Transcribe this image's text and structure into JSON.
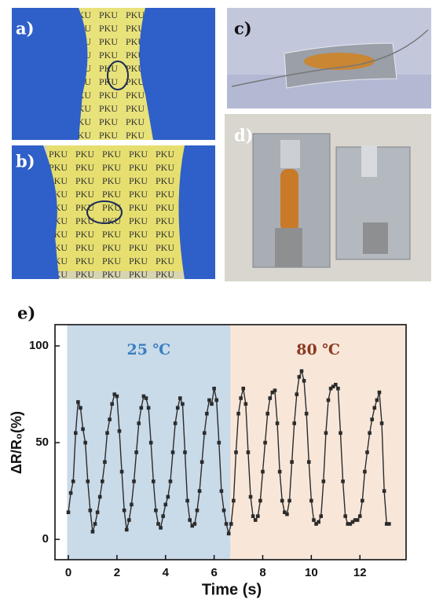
{
  "panels": [
    "a)",
    "b)",
    "c)",
    "d)",
    "e)"
  ],
  "photo_text": "PKU",
  "chart_data": {
    "type": "line",
    "x_label": "Time (s)",
    "y_label": "ΔR/R₀(%)",
    "xlim": [
      -0.55,
      13.9
    ],
    "ylim": [
      -10.5,
      111
    ],
    "xticks": [
      0,
      2,
      4,
      6,
      8,
      10,
      12
    ],
    "yticks": [
      0,
      50,
      100
    ],
    "regions": [
      {
        "xlim": [
          -0.05,
          6.67
        ],
        "color": "#c9dae9",
        "label": "25 ℃",
        "label_color": "#3a7fc0"
      },
      {
        "xlim": [
          6.67,
          13.9
        ],
        "color": "#f8e7d9",
        "label": "80 ℃",
        "label_color": "#8b3a22"
      }
    ],
    "series": [
      {
        "color": "#2b2b2b",
        "x": [
          0.0,
          0.1,
          0.2,
          0.3,
          0.4,
          0.5,
          0.6,
          0.7,
          0.8,
          0.9,
          1.0,
          1.1,
          1.2,
          1.3,
          1.4,
          1.5,
          1.6,
          1.7,
          1.8,
          1.9,
          2.0,
          2.1,
          2.2,
          2.3,
          2.4,
          2.5,
          2.6,
          2.7,
          2.8,
          2.9,
          3.0,
          3.1,
          3.2,
          3.3,
          3.4,
          3.5,
          3.6,
          3.7,
          3.8,
          3.9,
          4.0,
          4.1,
          4.2,
          4.3,
          4.4,
          4.5,
          4.6,
          4.7,
          4.8,
          4.9,
          5.0,
          5.1,
          5.2,
          5.3,
          5.4,
          5.5,
          5.6,
          5.7,
          5.8,
          5.9,
          6.0,
          6.1,
          6.2,
          6.3,
          6.4,
          6.5,
          6.6,
          6.7,
          6.8,
          6.9,
          7.0,
          7.1,
          7.2,
          7.3,
          7.4,
          7.5,
          7.6,
          7.7,
          7.8,
          7.9,
          8.0,
          8.1,
          8.2,
          8.3,
          8.4,
          8.5,
          8.6,
          8.7,
          8.8,
          8.9,
          9.0,
          9.1,
          9.2,
          9.3,
          9.4,
          9.5,
          9.6,
          9.7,
          9.8,
          9.9,
          10.0,
          10.1,
          10.2,
          10.3,
          10.4,
          10.5,
          10.6,
          10.7,
          10.8,
          10.9,
          11.0,
          11.1,
          11.2,
          11.3,
          11.4,
          11.5,
          11.6,
          11.7,
          11.8,
          11.9,
          12.0,
          12.1,
          12.2,
          12.3,
          12.4,
          12.5,
          12.6,
          12.7,
          12.8,
          12.9,
          13.0,
          13.1,
          13.2
        ],
        "values": [
          14,
          24,
          30,
          55,
          71,
          68,
          57,
          50,
          30,
          15,
          4,
          8,
          14,
          22,
          30,
          40,
          55,
          62,
          70,
          75,
          74,
          56,
          35,
          15,
          5,
          10,
          18,
          30,
          45,
          60,
          68,
          74,
          73,
          68,
          50,
          30,
          15,
          8,
          6,
          12,
          18,
          22,
          30,
          45,
          60,
          68,
          73,
          70,
          45,
          20,
          10,
          7,
          8,
          15,
          25,
          40,
          55,
          65,
          72,
          70,
          78,
          72,
          50,
          25,
          15,
          8,
          3,
          8,
          20,
          45,
          65,
          73,
          78,
          70,
          45,
          22,
          12,
          10,
          12,
          20,
          35,
          50,
          65,
          73,
          76,
          77,
          60,
          35,
          20,
          14,
          13,
          20,
          40,
          60,
          75,
          84,
          87,
          82,
          65,
          40,
          20,
          10,
          8,
          9,
          12,
          30,
          55,
          72,
          78,
          79,
          80,
          78,
          55,
          30,
          12,
          8,
          8,
          9,
          10,
          10,
          12,
          20,
          35,
          45,
          55,
          62,
          68,
          72,
          76,
          60,
          25,
          8,
          8
        ]
      }
    ]
  }
}
